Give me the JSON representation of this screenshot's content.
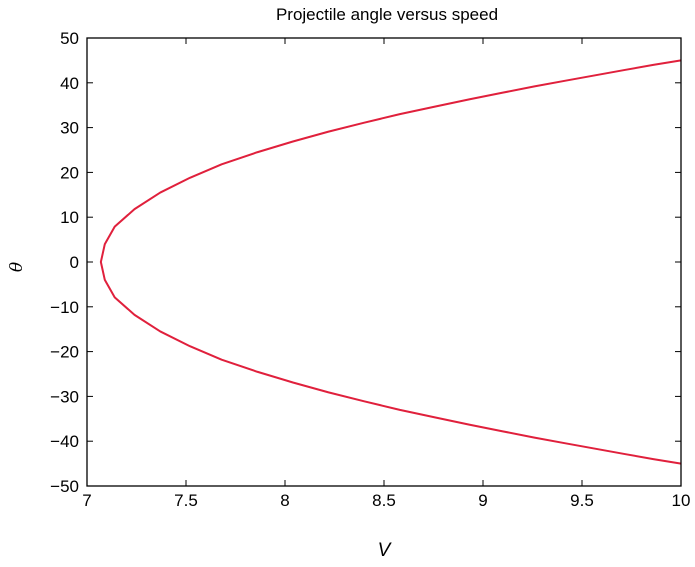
{
  "chart_data": {
    "type": "line",
    "title": "Projectile angle versus speed",
    "xlabel": "V",
    "ylabel": "θ",
    "xlim": [
      7,
      10
    ],
    "ylim": [
      -50,
      50
    ],
    "grid": false,
    "x_ticks": [
      7,
      7.5,
      8,
      8.5,
      9,
      9.5,
      10
    ],
    "x_tick_labels": [
      "7",
      "7.5",
      "8",
      "8.5",
      "9",
      "9.5",
      "10"
    ],
    "y_ticks": [
      -50,
      -40,
      -30,
      -20,
      -10,
      0,
      10,
      20,
      30,
      40,
      50
    ],
    "y_tick_labels": [
      "−50",
      "−40",
      "−30",
      "−20",
      "−10",
      "0",
      "10",
      "20",
      "30",
      "40",
      "50"
    ],
    "series": [
      {
        "color": "#e0203c",
        "x": [
          10.0,
          9.86,
          9.72,
          9.57,
          9.42,
          9.26,
          9.1,
          8.93,
          8.76,
          8.58,
          8.4,
          8.22,
          8.04,
          7.86,
          7.68,
          7.52,
          7.37,
          7.24,
          7.14,
          7.09,
          7.07,
          7.09,
          7.14,
          7.24,
          7.37,
          7.52,
          7.68,
          7.86,
          8.04,
          8.22,
          8.4,
          8.58,
          8.76,
          8.93,
          9.1,
          9.26,
          9.42,
          9.57,
          9.72,
          9.86,
          10.0
        ],
        "y": [
          45.0,
          44.0,
          42.9,
          41.7,
          40.5,
          39.2,
          37.8,
          36.3,
          34.7,
          33.0,
          31.1,
          29.1,
          26.9,
          24.5,
          21.8,
          18.8,
          15.5,
          11.8,
          7.9,
          4.0,
          0.0,
          -4.0,
          -7.9,
          -11.8,
          -15.5,
          -18.8,
          -21.8,
          -24.5,
          -26.9,
          -29.1,
          -31.1,
          -33.0,
          -34.7,
          -36.3,
          -37.8,
          -39.2,
          -40.5,
          -41.7,
          -42.9,
          -44.0,
          -45.0
        ]
      }
    ]
  }
}
